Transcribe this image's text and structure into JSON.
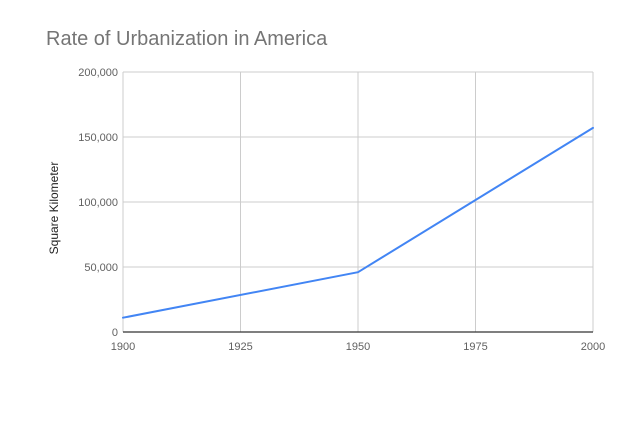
{
  "chart_data": {
    "type": "line",
    "title": "Rate of Urbanization in America",
    "xlabel": "",
    "ylabel": "Square Kilometer",
    "xlim": [
      1900,
      2000
    ],
    "ylim": [
      0,
      200000
    ],
    "x_ticks": [
      1900,
      1925,
      1950,
      1975,
      2000
    ],
    "x_tick_labels": [
      "1900",
      "1925",
      "1950",
      "1975",
      "2000"
    ],
    "y_ticks": [
      0,
      50000,
      100000,
      150000,
      200000
    ],
    "y_tick_labels": [
      "0",
      "50,000",
      "100,000",
      "150,000",
      "200,000"
    ],
    "grid": true,
    "legend": "none",
    "series": [
      {
        "color": "#4285f4",
        "x": [
          1900,
          1950,
          2000
        ],
        "y": [
          11000,
          46000,
          157000
        ]
      }
    ]
  }
}
